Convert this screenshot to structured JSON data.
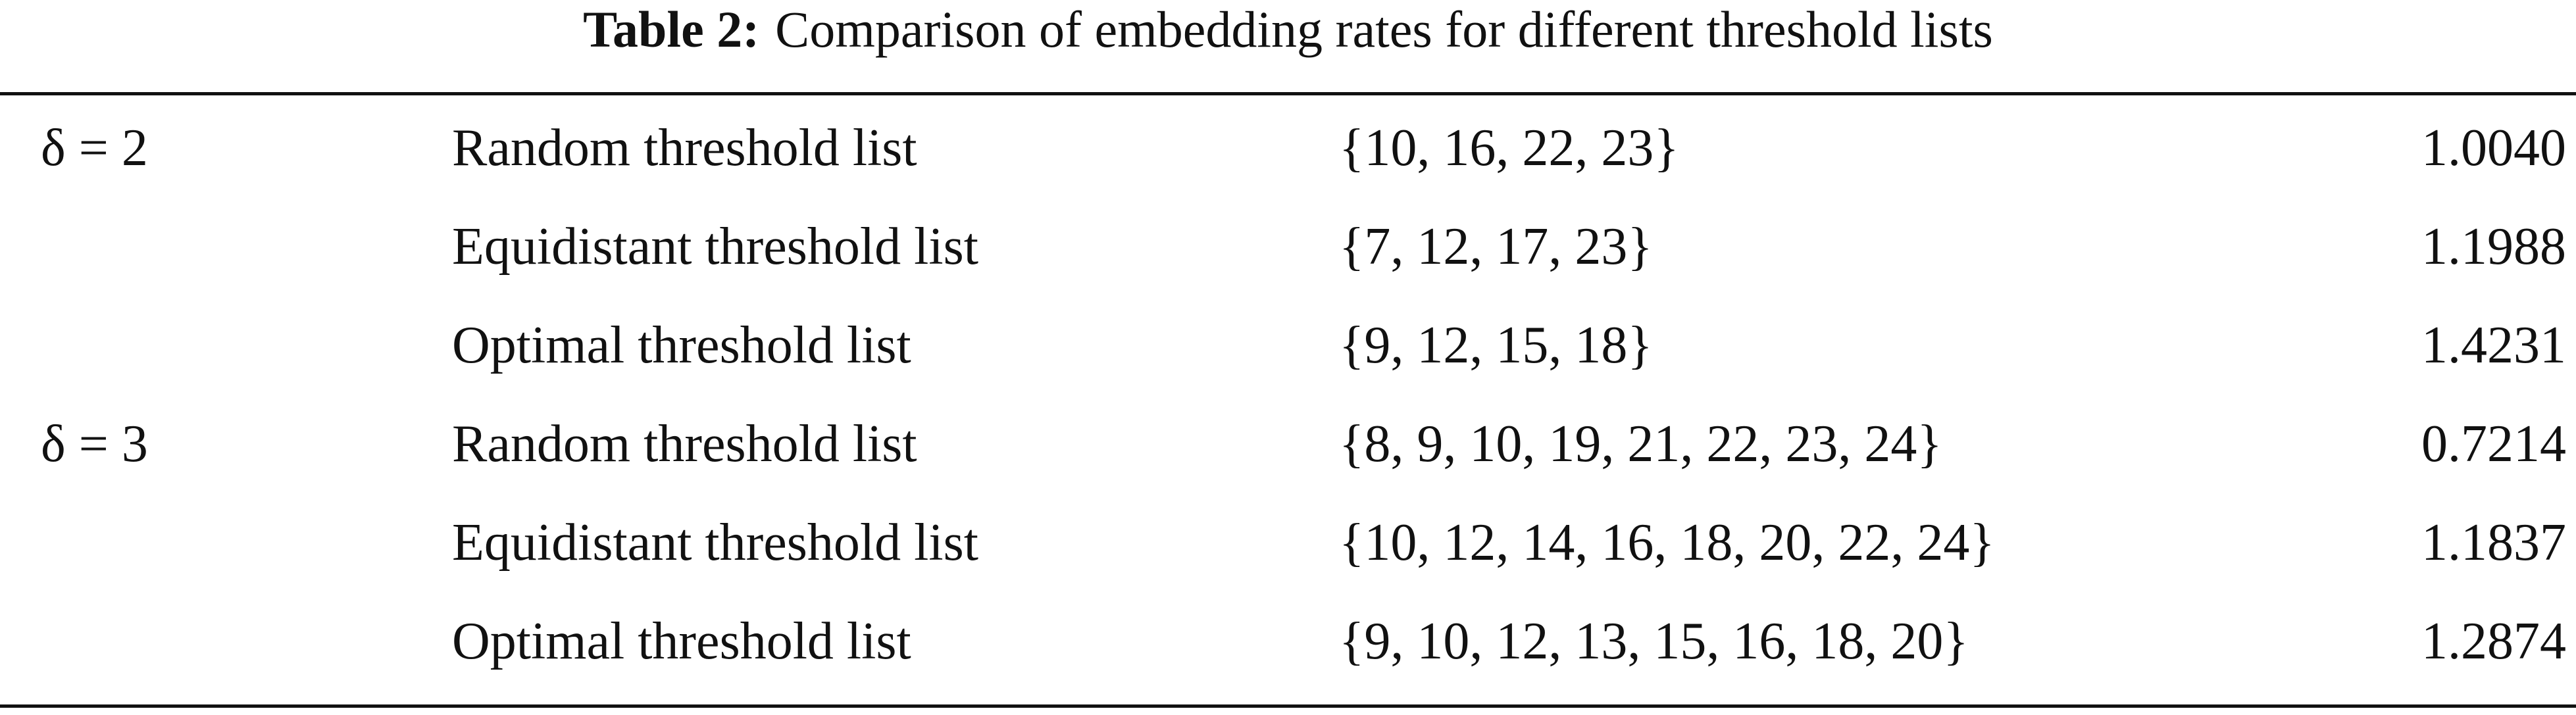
{
  "table": {
    "title": {
      "label": "Table 2:",
      "text": "Comparison of embedding rates for different threshold lists"
    },
    "groups": [
      {
        "delta": "δ = 2",
        "rows": [
          [
            "Random threshold list",
            "{10, 16, 22, 23}",
            "1.0040"
          ],
          [
            "Equidistant threshold list",
            "{7, 12, 17, 23}",
            "1.1988"
          ],
          [
            "Optimal threshold list",
            "{9, 12, 15, 18}",
            "1.4231"
          ]
        ]
      },
      {
        "delta": "δ = 3",
        "rows": [
          [
            "Random threshold list",
            "{8, 9, 10, 19, 21, 22, 23, 24}",
            "0.7214"
          ],
          [
            "Equidistant threshold list",
            "{10, 12, 14, 16, 18, 20, 22, 24}",
            "1.1837"
          ],
          [
            "Optimal threshold list",
            "{9, 10, 12, 13, 15, 16, 18, 20}",
            "1.2874"
          ]
        ]
      }
    ]
  }
}
